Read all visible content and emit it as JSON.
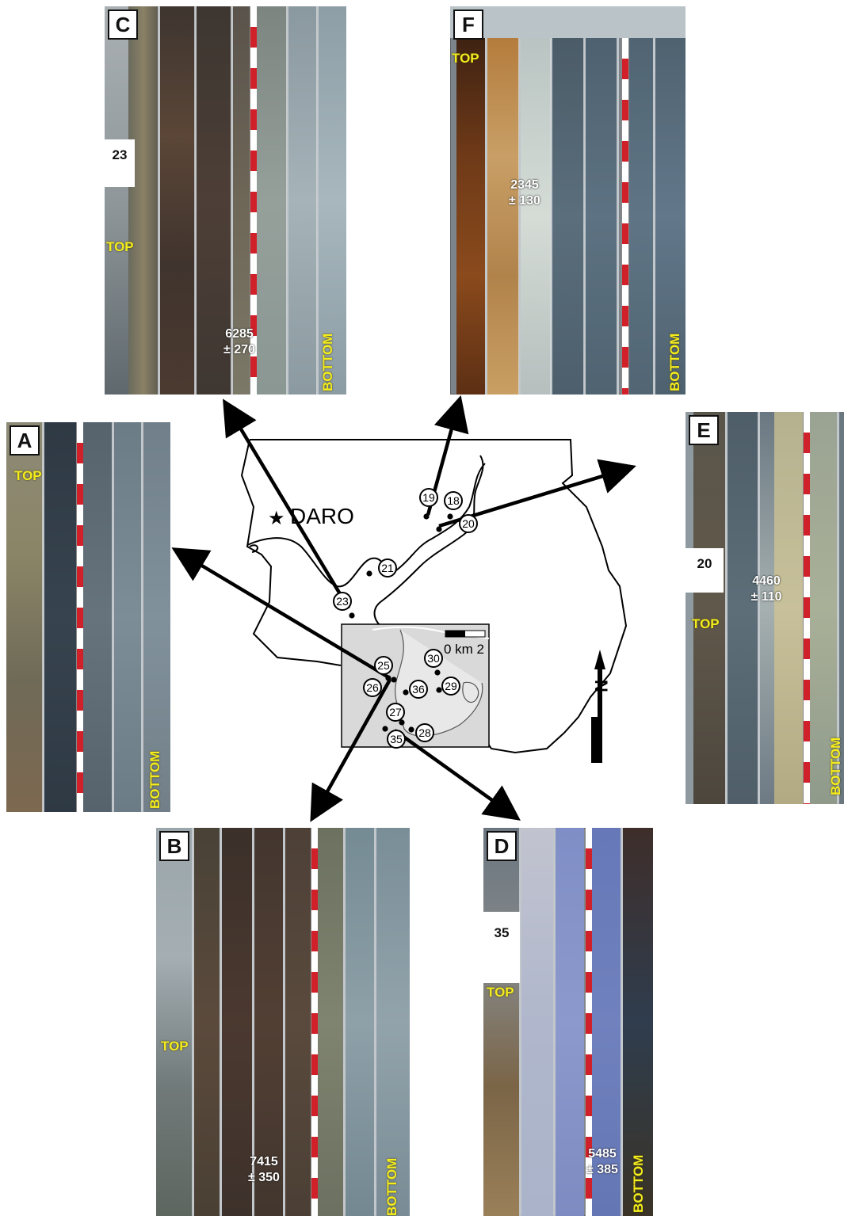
{
  "panels": {
    "C": {
      "letter": "C",
      "site": "23",
      "top": "TOP",
      "bottom": "BOTTOM",
      "age": "6285",
      "err": "± 270"
    },
    "F": {
      "letter": "F",
      "top": "TOP",
      "bottom": "BOTTOM",
      "age": "2345",
      "err": "± 130"
    },
    "A": {
      "letter": "A",
      "top": "TOP",
      "bottom": "BOTTOM"
    },
    "E": {
      "letter": "E",
      "site": "20",
      "top": "TOP",
      "bottom": "BOTTOM",
      "age": "4460",
      "err": "± 110"
    },
    "B": {
      "letter": "B",
      "top": "TOP",
      "bottom": "BOTTOM",
      "age": "7415",
      "err": "± 350"
    },
    "D": {
      "letter": "D",
      "site": "35",
      "top": "TOP",
      "bottom": "BOTTOM",
      "age": "5485",
      "err": "± 385"
    }
  },
  "map": {
    "town": "DARO",
    "scale": "0 km 2",
    "north": "N",
    "sites": [
      "19",
      "18",
      "20",
      "21",
      "23",
      "25",
      "26",
      "30",
      "36",
      "29",
      "27",
      "28",
      "35"
    ]
  }
}
